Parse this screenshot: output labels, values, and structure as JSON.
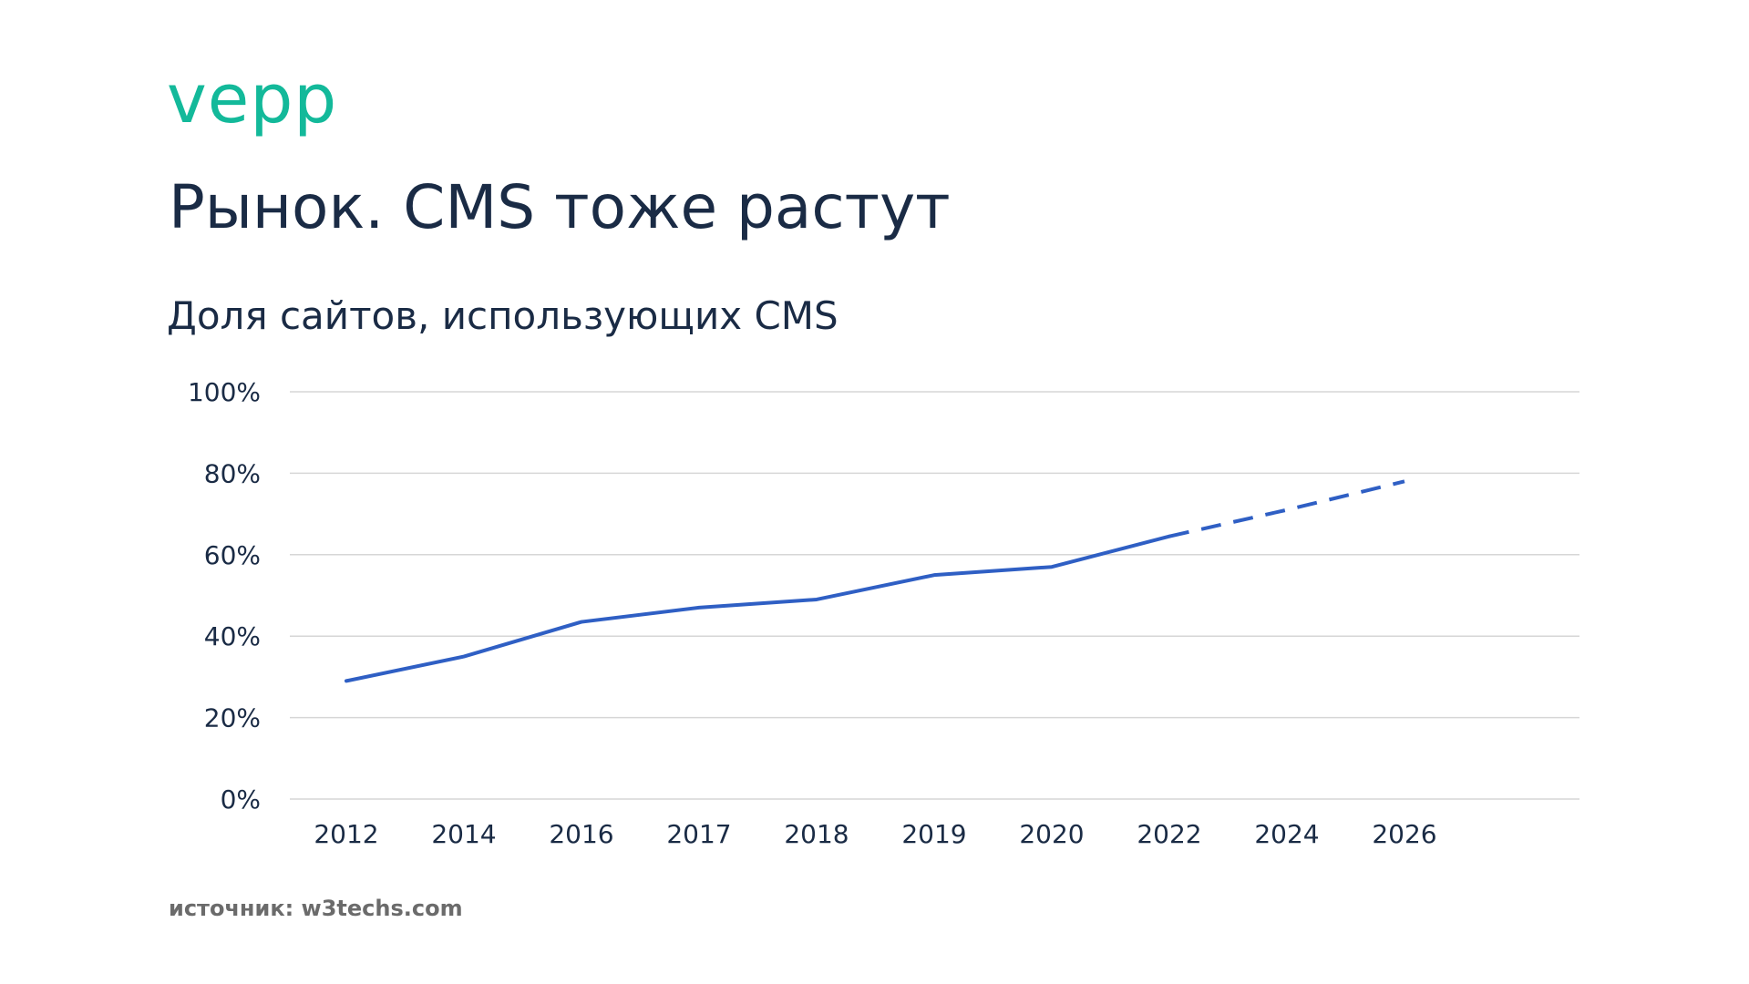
{
  "brand": {
    "logo_text": "vepp",
    "logo_color": "#13B99A"
  },
  "colors": {
    "title": "#1A2B45",
    "axis_text": "#1A2B45",
    "source_text": "#6B6B6B",
    "grid": "#D6D6D6",
    "series": "#2F5FC4"
  },
  "slide": {
    "title": "Рынок. CMS тоже растут",
    "source": "источник: w3techs.com"
  },
  "chart_data": {
    "type": "line",
    "title": "Доля сайтов, использующих CMS",
    "xlabel": "",
    "ylabel": "",
    "categories": [
      "2012",
      "2014",
      "2016",
      "2017",
      "2018",
      "2019",
      "2020",
      "2022",
      "2024",
      "2026"
    ],
    "series": [
      {
        "values": [
          29,
          35,
          43.5,
          47,
          49,
          55,
          57,
          64.5,
          71,
          78
        ],
        "style": "solid until 2022, dashed after (forecast)",
        "dashed_from_index": 7
      }
    ],
    "ylim": [
      0,
      100
    ],
    "y_ticks": [
      0,
      20,
      40,
      60,
      80,
      100
    ],
    "y_tick_labels": [
      "0%",
      "20%",
      "40%",
      "60%",
      "80%",
      "100%"
    ],
    "grid": true,
    "legend": "none"
  }
}
